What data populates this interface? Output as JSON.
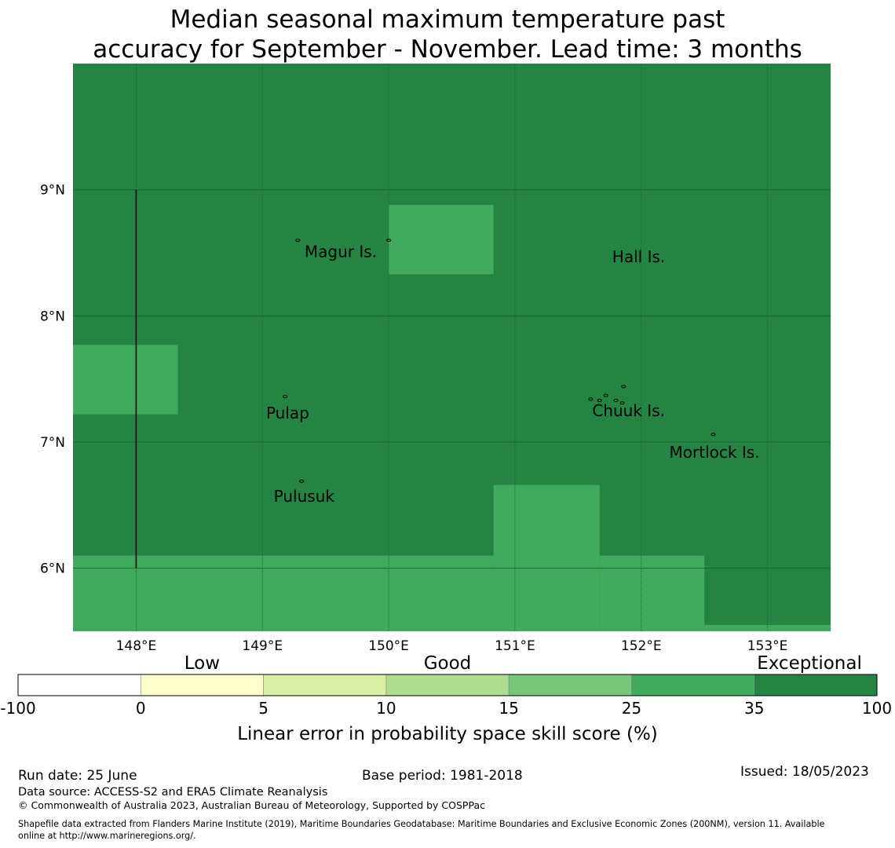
{
  "title": {
    "line1": "Median seasonal maximum temperature past",
    "line2": "accuracy for September - November. Lead time: 3 months"
  },
  "map": {
    "lon_range": [
      147.5,
      153.5
    ],
    "lat_range": [
      5.5,
      10.0
    ],
    "grid": true,
    "colors": {
      "exceptional": "#238443",
      "good_high": "#41ab5d",
      "ocean_base": "#238443",
      "gridline": "#1a5c2c"
    },
    "lon_ticks": [
      {
        "value": 148,
        "label": "148°E"
      },
      {
        "value": 149,
        "label": "149°E"
      },
      {
        "value": 150,
        "label": "150°E"
      },
      {
        "value": 151,
        "label": "151°E"
      },
      {
        "value": 152,
        "label": "152°E"
      },
      {
        "value": 153,
        "label": "153°E"
      }
    ],
    "lat_ticks": [
      {
        "value": 9,
        "label": "9°N"
      },
      {
        "value": 8,
        "label": "8°N"
      },
      {
        "value": 7,
        "label": "7°N"
      },
      {
        "value": 6,
        "label": "6°N"
      }
    ],
    "cells": [
      {
        "lon0": 150.0,
        "lon1": 150.83,
        "lat0": 8.33,
        "lat1": 8.88,
        "color": "#41ab5d"
      },
      {
        "lon0": 147.5,
        "lon1": 148.33,
        "lat0": 7.22,
        "lat1": 7.77,
        "color": "#41ab5d"
      },
      {
        "lon0": 150.83,
        "lon1": 151.67,
        "lat0": 6.1,
        "lat1": 6.66,
        "color": "#41ab5d"
      },
      {
        "lon0": 147.5,
        "lon1": 150.83,
        "lat0": 5.5,
        "lat1": 6.1,
        "color": "#41ab5d"
      },
      {
        "lon0": 150.83,
        "lon1": 151.67,
        "lat0": 5.5,
        "lat1": 6.1,
        "color": "#41ab5d"
      },
      {
        "lon0": 151.67,
        "lon1": 152.5,
        "lat0": 5.5,
        "lat1": 6.1,
        "color": "#41ab5d"
      },
      {
        "lon0": 152.5,
        "lon1": 153.5,
        "lat0": 5.5,
        "lat1": 5.55,
        "color": "#41ab5d"
      }
    ],
    "boundary_line": {
      "lon": 148.0,
      "lat0": 6.0,
      "lat1": 9.0
    },
    "places": [
      {
        "name": "Magur Is.",
        "lon": 149.62,
        "lat": 8.5
      },
      {
        "name": "Hall Is.",
        "lon": 151.98,
        "lat": 8.46
      },
      {
        "name": "Pulap",
        "lon": 149.2,
        "lat": 7.22
      },
      {
        "name": "Chuuk Is.",
        "lon": 151.9,
        "lat": 7.24
      },
      {
        "name": "Mortlock Is.",
        "lon": 152.58,
        "lat": 6.91
      },
      {
        "name": "Pulusuk",
        "lon": 149.33,
        "lat": 6.56
      }
    ],
    "islands": [
      {
        "lon": 149.28,
        "lat": 8.6
      },
      {
        "lon": 149.18,
        "lat": 7.36
      },
      {
        "lon": 149.31,
        "lat": 6.69
      },
      {
        "lon": 151.6,
        "lat": 7.34
      },
      {
        "lon": 151.67,
        "lat": 7.33
      },
      {
        "lon": 151.72,
        "lat": 7.37
      },
      {
        "lon": 151.8,
        "lat": 7.33
      },
      {
        "lon": 151.85,
        "lat": 7.31
      },
      {
        "lon": 151.86,
        "lat": 7.44
      },
      {
        "lon": 152.57,
        "lat": 7.06
      },
      {
        "lon": 150.0,
        "lat": 8.6
      }
    ]
  },
  "legend": {
    "category_labels": [
      {
        "label": "Low",
        "at_index": 1
      },
      {
        "label": "Good",
        "at_index": 3
      },
      {
        "label": "Exceptional",
        "at_index": 6
      }
    ],
    "bins": [
      {
        "color": "#ffffff"
      },
      {
        "color": "#ffffcc"
      },
      {
        "color": "#d9f0a3"
      },
      {
        "color": "#addd8e"
      },
      {
        "color": "#78c679"
      },
      {
        "color": "#41ab5d"
      },
      {
        "color": "#238443"
      }
    ],
    "tick_labels": [
      "-100",
      "0",
      "5",
      "10",
      "15",
      "25",
      "35",
      "100"
    ],
    "axis_label": "Linear error in probability space skill score (%)"
  },
  "footer": {
    "run_date": "Run date: 25 June",
    "base_period": "Base period: 1981-2018",
    "issued": "Issued: 18/05/2023",
    "data_source": "Data source: ACCESS-S2 and ERA5 Climate Reanalysis",
    "copyright": "© Commonwealth of Australia 2023, Australian Bureau of Meteorology, Supported by COSPPac",
    "shapefile_line1": "Shapefile data extracted from Flanders Marine Institute (2019), Maritime Boundaries Geodatabase: Maritime Boundaries and Exclusive Economic Zones (200NM), version 11. Available",
    "shapefile_line2": "online at http://www.marineregions.org/."
  }
}
